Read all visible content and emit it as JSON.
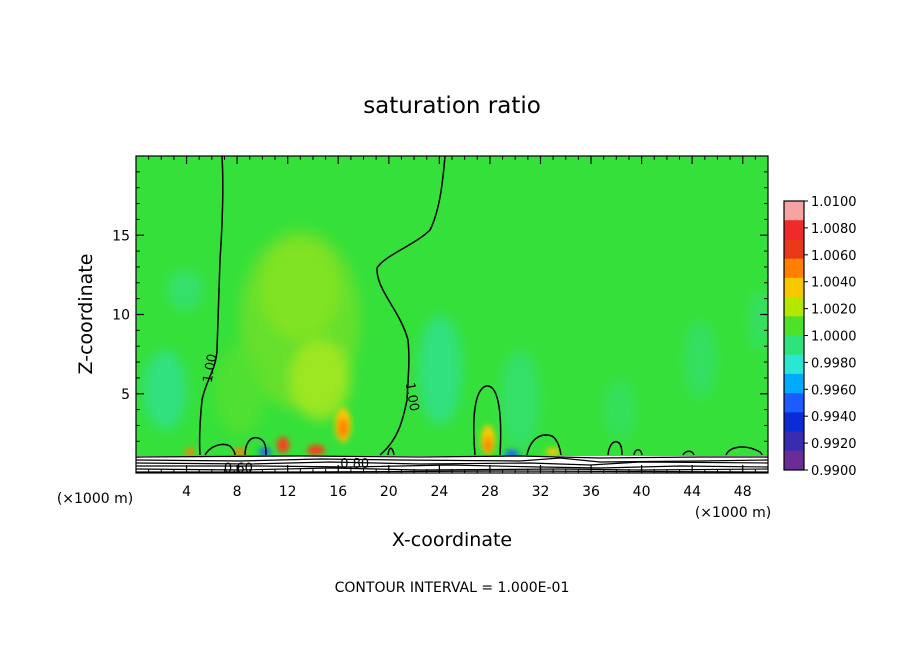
{
  "chart_data": {
    "type": "heatmap",
    "title": "saturation ratio",
    "xlabel": "X-coordinate",
    "ylabel": "Z-coordinate",
    "x_unit_left": "(×1000 m)",
    "x_unit_right": "(×1000 m)",
    "x_ticks": [
      4,
      8,
      12,
      16,
      20,
      24,
      28,
      32,
      36,
      40,
      44,
      48
    ],
    "y_ticks": [
      5,
      10,
      15
    ],
    "xlim": [
      0,
      50
    ],
    "ylim": [
      0,
      20
    ],
    "footer": "CONTOUR INTERVAL = 1.000E-01",
    "contour_labels": [
      {
        "text": "1.00",
        "x": 5.9,
        "z": 6.6,
        "rotate": -80
      },
      {
        "text": "1.00",
        "x": 21.8,
        "z": 4.8,
        "rotate": 80
      },
      {
        "text": "0.80",
        "x": 17.3,
        "z": 0.55,
        "rotate": 0
      },
      {
        "text": "0.60",
        "x": 8.1,
        "z": 0.25,
        "rotate": 0
      }
    ],
    "colorbar": {
      "labels": [
        "1.0100",
        "1.0080",
        "1.0060",
        "1.0040",
        "1.0020",
        "1.0000",
        "0.9980",
        "0.9960",
        "0.9940",
        "0.9920",
        "0.9900"
      ],
      "colors": [
        "#f5a3a3",
        "#ee2a2a",
        "#e8381a",
        "#ff7f00",
        "#f7c800",
        "#b4e800",
        "#4fe02a",
        "#2fe37c",
        "#29e7d2",
        "#00aaff",
        "#1c5cff",
        "#0a2bd6",
        "#3a2cb0",
        "#6b2c96"
      ]
    },
    "base_color": "#36e03a",
    "colors": {
      "plume": "#6fe028",
      "plume_core": "#a7e81e",
      "teal": "#30e090",
      "hot": "#ff3b1a",
      "warm": "#ffc800"
    }
  }
}
